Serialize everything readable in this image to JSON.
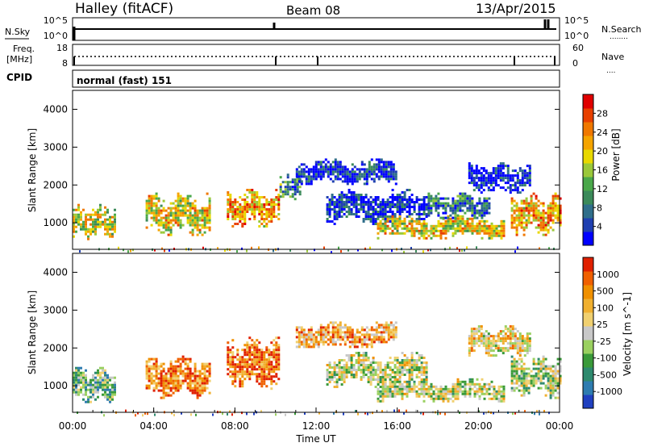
{
  "header": {
    "station": "Halley (fitACF)",
    "beam": "Beam 08",
    "date": "13/Apr/2015"
  },
  "strips": {
    "nsky_label": "N.Sky",
    "nsearch_label": "N.Search",
    "nsearch_dots": "........",
    "count_ticks_left": [
      "10^5",
      "10^0"
    ],
    "count_ticks_right": [
      "10^5",
      "10^0"
    ],
    "freq_label_1": "Freq.",
    "freq_label_2": "[MHz]",
    "freq_ticks": [
      "18",
      "8"
    ],
    "nave_label": "Nave",
    "nave_dots": "....",
    "nave_ticks": [
      "60",
      "0"
    ],
    "cpid_label": "CPID",
    "cpid_value": "normal (fast) 151"
  },
  "chart_data": [
    {
      "type": "heatmap",
      "name": "power",
      "ylabel": "Slant Range [km]",
      "yticks": [
        1000,
        2000,
        3000,
        4000
      ],
      "ylim": [
        300,
        4500
      ],
      "xlim": [
        0,
        24
      ],
      "colorbar_label": "Power [dB]",
      "colorbar_ticks": [
        "28",
        "24",
        "20",
        "16",
        "12",
        "8",
        "4"
      ],
      "colorbar_colors": [
        "#0000ff",
        "#1f3fb0",
        "#2f6e8a",
        "#3b8a5a",
        "#4aa84a",
        "#9ac83a",
        "#e8d800",
        "#f5a400",
        "#f07800",
        "#e84000",
        "#e00000"
      ],
      "regions": [
        {
          "t0": 0.0,
          "t1": 2.1,
          "r0": 600,
          "r1": 1500,
          "level": 0.55
        },
        {
          "t0": 3.6,
          "t1": 6.8,
          "r0": 700,
          "r1": 1800,
          "level": 0.6
        },
        {
          "t0": 7.6,
          "t1": 10.2,
          "r0": 900,
          "r1": 1900,
          "level": 0.7
        },
        {
          "t0": 10.2,
          "t1": 11.2,
          "r0": 1600,
          "r1": 2300,
          "level": 0.3
        },
        {
          "t0": 11.0,
          "t1": 16.0,
          "r0": 2000,
          "r1": 2700,
          "level": 0.1
        },
        {
          "t0": 12.5,
          "t1": 17.5,
          "r0": 1000,
          "r1": 1900,
          "level": 0.1
        },
        {
          "t0": 15.0,
          "t1": 21.3,
          "r0": 600,
          "r1": 1200,
          "level": 0.6
        },
        {
          "t0": 17.5,
          "t1": 20.5,
          "r0": 1100,
          "r1": 1800,
          "level": 0.25
        },
        {
          "t0": 19.5,
          "t1": 22.5,
          "r0": 1800,
          "r1": 2600,
          "level": 0.05
        },
        {
          "t0": 21.6,
          "t1": 24.0,
          "r0": 700,
          "r1": 1800,
          "level": 0.7
        }
      ]
    },
    {
      "type": "heatmap",
      "name": "velocity",
      "ylabel": "Slant Range [km]",
      "xlabel": "Time UT",
      "xticks": [
        "00:00",
        "04:00",
        "08:00",
        "12:00",
        "16:00",
        "20:00",
        "00:00"
      ],
      "yticks": [
        1000,
        2000,
        3000,
        4000
      ],
      "ylim": [
        300,
        4500
      ],
      "xlim": [
        0,
        24
      ],
      "colorbar_label": "Velocity [m s^-1]",
      "colorbar_ticks": [
        "1000",
        "500",
        "100",
        "25",
        "-25",
        "-100",
        "-500",
        "-1000"
      ],
      "colorbar_colors": [
        "#2040c0",
        "#2e7cb0",
        "#2e8a6e",
        "#3a9a3a",
        "#9ad060",
        "#c8c8c8",
        "#f0d070",
        "#f0b030",
        "#f09000",
        "#f06000",
        "#e02000"
      ],
      "regions": [
        {
          "t0": 0.0,
          "t1": 2.1,
          "r0": 600,
          "r1": 1500,
          "level": 0.35
        },
        {
          "t0": 3.6,
          "t1": 6.8,
          "r0": 700,
          "r1": 1800,
          "level": 0.8
        },
        {
          "t0": 7.6,
          "t1": 10.2,
          "r0": 900,
          "r1": 2300,
          "level": 0.85
        },
        {
          "t0": 11.0,
          "t1": 16.0,
          "r0": 2000,
          "r1": 2700,
          "level": 0.7
        },
        {
          "t0": 12.5,
          "t1": 17.5,
          "r0": 1000,
          "r1": 1900,
          "level": 0.5
        },
        {
          "t0": 15.0,
          "t1": 21.3,
          "r0": 600,
          "r1": 1200,
          "level": 0.5
        },
        {
          "t0": 19.5,
          "t1": 22.5,
          "r0": 1800,
          "r1": 2600,
          "level": 0.6
        },
        {
          "t0": 21.6,
          "t1": 24.0,
          "r0": 700,
          "r1": 1800,
          "level": 0.45
        }
      ]
    }
  ]
}
